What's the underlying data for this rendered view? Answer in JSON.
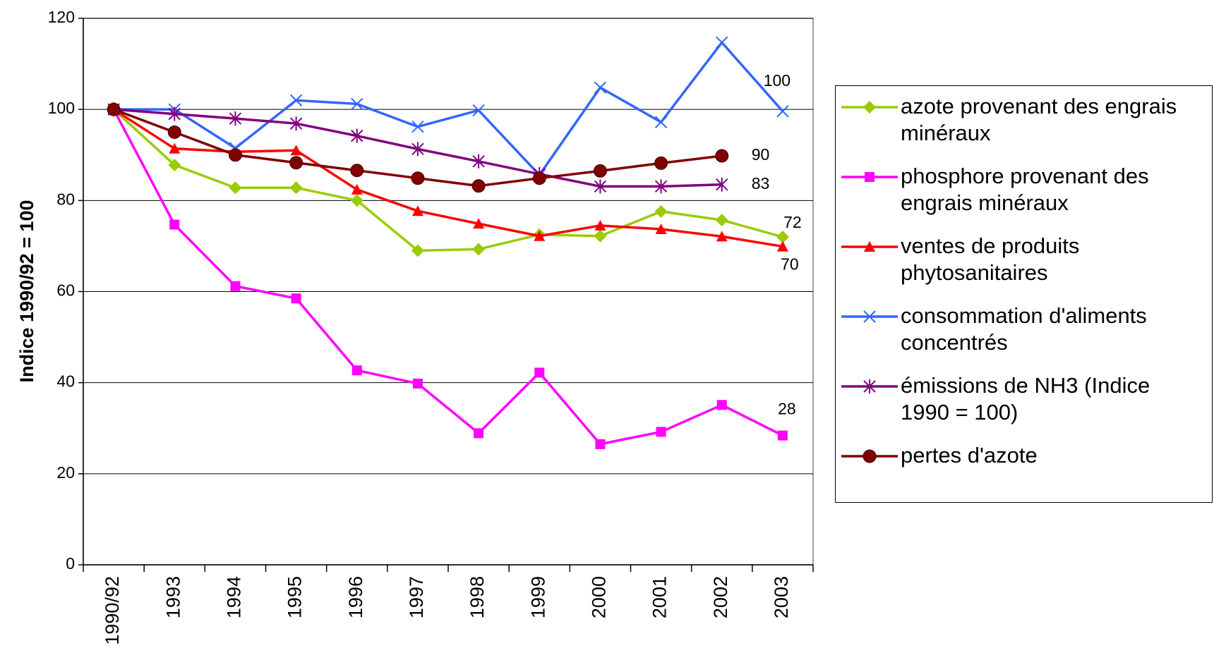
{
  "chart_data": {
    "type": "line",
    "y_label": "Indice 1990/92 = 100",
    "categories": [
      "1990/92",
      "1993",
      "1994",
      "1995",
      "1996",
      "1997",
      "1998",
      "1999",
      "2000",
      "2001",
      "2002",
      "2003"
    ],
    "ylim": [
      0,
      120
    ],
    "yticks": [
      0,
      20,
      40,
      60,
      80,
      100,
      120
    ],
    "grid": true,
    "series": [
      {
        "name": "azote provenant des engrais minéraux",
        "color": "#99cc00",
        "marker": "diamond",
        "values": [
          100,
          87.8,
          82.8,
          82.8,
          80,
          69,
          69.3,
          72.5,
          72.2,
          77.6,
          75.7,
          72
        ],
        "value_labels": [
          null,
          null,
          null,
          null,
          null,
          null,
          null,
          null,
          null,
          null,
          null,
          "72"
        ]
      },
      {
        "name": "phosphore provenant des engrais minéraux",
        "color": "#ff00ff",
        "marker": "square",
        "values": [
          100,
          74.7,
          61.2,
          58.5,
          42.7,
          39.8,
          28.9,
          42.2,
          26.5,
          29.2,
          35.1,
          28.4
        ],
        "value_labels": [
          null,
          null,
          null,
          null,
          null,
          null,
          null,
          null,
          null,
          null,
          null,
          "28"
        ]
      },
      {
        "name": "ventes de produits phytosanitaires",
        "color": "#ff0000",
        "marker": "triangle",
        "values": [
          100,
          91.4,
          90.7,
          91,
          82.4,
          77.7,
          74.9,
          72.2,
          74.5,
          73.7,
          72.1,
          69.9
        ],
        "value_labels": [
          null,
          null,
          null,
          null,
          null,
          null,
          null,
          null,
          null,
          null,
          null,
          "70"
        ]
      },
      {
        "name": "consommation d'aliments concentrés",
        "color": "#3366ff",
        "marker": "x",
        "values": [
          100,
          100,
          91.5,
          102,
          101.2,
          96.2,
          99.8,
          85.6,
          104.8,
          97.2,
          114.7,
          99.6
        ],
        "value_labels": [
          null,
          null,
          null,
          null,
          null,
          null,
          null,
          null,
          null,
          null,
          null,
          "100"
        ]
      },
      {
        "name": "émissions de NH3 (Indice 1990 = 100)",
        "color": "#800080",
        "marker": "star",
        "values": [
          100,
          99,
          98,
          96.9,
          94.2,
          91.3,
          88.6,
          85.8,
          83.1,
          83.1,
          83.5,
          null
        ],
        "value_labels": [
          null,
          null,
          null,
          null,
          null,
          null,
          null,
          null,
          null,
          null,
          "83",
          null
        ]
      },
      {
        "name": "pertes d'azote",
        "color": "#800000",
        "marker": "circle",
        "values": [
          100,
          95,
          90,
          88.3,
          86.6,
          84.9,
          83.2,
          84.9,
          86.5,
          88.2,
          89.8,
          null
        ],
        "value_labels": [
          null,
          null,
          null,
          null,
          null,
          null,
          null,
          null,
          null,
          null,
          "90",
          null
        ]
      }
    ]
  }
}
